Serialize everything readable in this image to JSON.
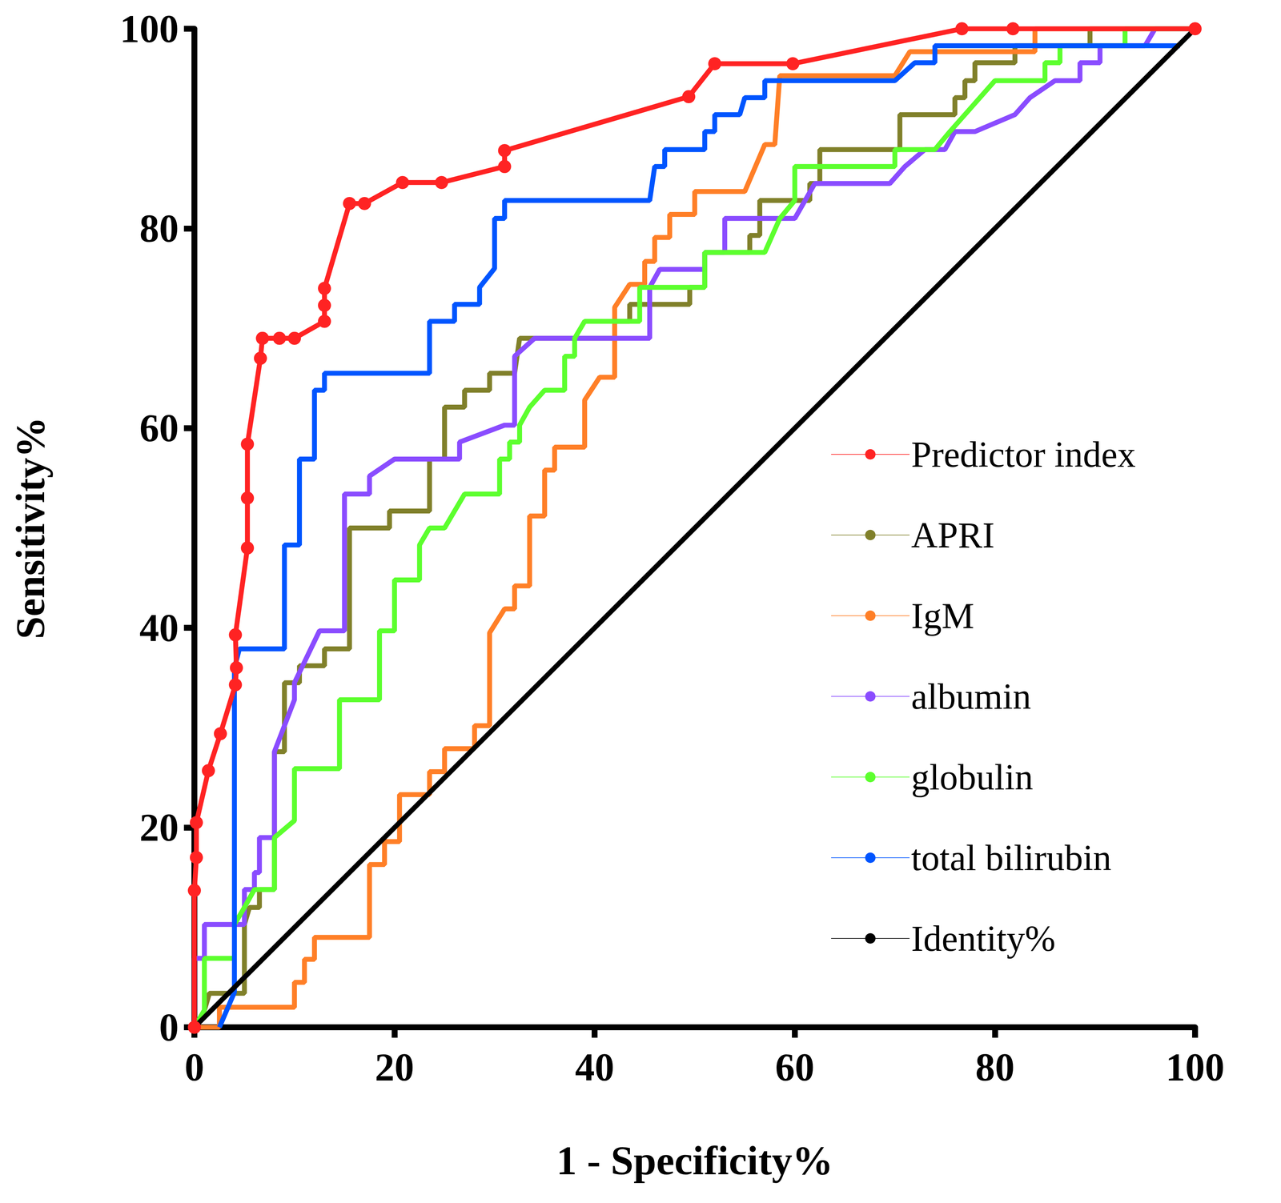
{
  "chart_data": {
    "type": "line",
    "x_label": "1 - Specificity%",
    "y_label": "Sensitivity%",
    "xlim": [
      0,
      100
    ],
    "ylim": [
      0,
      100
    ],
    "xticks": [
      0,
      20,
      40,
      60,
      80,
      100
    ],
    "yticks": [
      0,
      20,
      40,
      60,
      80,
      100
    ],
    "grid": false,
    "legend": "lower right",
    "series": [
      {
        "name": "Predictor index",
        "color": "#ff2323",
        "marker": "circle",
        "x": [
          0,
          0,
          0.2,
          0.2,
          1.4,
          2.6,
          4.1,
          4.2,
          4.1,
          5.3,
          5.3,
          5.3,
          6.6,
          6.8,
          8.5,
          10,
          13,
          13,
          13,
          15.5,
          17,
          20.8,
          24.7,
          31,
          31,
          49.4,
          52,
          59.8,
          76.7,
          81.8,
          100
        ],
        "values": [
          0,
          13.7,
          17,
          20.5,
          25.7,
          29.4,
          34.3,
          36,
          39.3,
          48,
          53,
          58.4,
          67,
          69,
          69,
          69,
          70.7,
          72.3,
          74,
          82.5,
          82.5,
          84.6,
          84.6,
          86.2,
          87.8,
          93.2,
          96.5,
          96.5,
          100,
          100,
          100
        ]
      },
      {
        "name": "APRI",
        "color": "#80802a",
        "marker": "none",
        "x": [
          0,
          1,
          1.5,
          5,
          5,
          5.5,
          6.5,
          6.5,
          8,
          8,
          9,
          9,
          10.5,
          10.5,
          13,
          13,
          15.5,
          15.5,
          19.5,
          19.5,
          23.5,
          23.5,
          25,
          25,
          27,
          27,
          29.5,
          29.5,
          32,
          32.5,
          42,
          42,
          43.5,
          43.5,
          49.5,
          49.5,
          51,
          51,
          55.5,
          55.5,
          56.5,
          56.5,
          61.5,
          61.5,
          62.5,
          62.5,
          70.5,
          70.5,
          76,
          76,
          77,
          77,
          78,
          78,
          82,
          82,
          89.5,
          89.5,
          100
        ],
        "values": [
          0,
          1.7,
          3.4,
          3.4,
          10.3,
          12,
          12,
          13.8,
          13.8,
          27.6,
          27.6,
          34.5,
          34.5,
          36.2,
          36.2,
          37.9,
          37.9,
          50,
          50,
          51.7,
          51.7,
          56.9,
          56.9,
          62.1,
          62.1,
          63.8,
          63.8,
          65.5,
          65.5,
          69,
          69,
          70.7,
          70.7,
          72.4,
          72.4,
          74.1,
          74.1,
          77.6,
          77.6,
          79.3,
          79.3,
          82.8,
          82.8,
          84.5,
          84.5,
          87.9,
          87.9,
          91.4,
          91.4,
          93.1,
          93.1,
          94.8,
          94.8,
          96.6,
          96.6,
          98.3,
          98.3,
          100,
          100
        ]
      },
      {
        "name": "IgM",
        "color": "#ff7f27",
        "marker": "none",
        "x": [
          0,
          2.5,
          2.5,
          10,
          10,
          11,
          11,
          12,
          12,
          17.5,
          17.5,
          19,
          19,
          20.5,
          20.5,
          23.5,
          23.5,
          25,
          25,
          28,
          28,
          29.5,
          29.5,
          31,
          32,
          32,
          33.5,
          33.5,
          35,
          35,
          36,
          36,
          39,
          39,
          40.5,
          42,
          42,
          43.5,
          45,
          45,
          46,
          46,
          47.5,
          47.5,
          50,
          50,
          55,
          57,
          58,
          58.5,
          70,
          71.5,
          84,
          84,
          100
        ],
        "values": [
          0,
          0,
          2,
          2,
          4.5,
          4.5,
          6.8,
          6.8,
          9,
          9,
          16.3,
          16.3,
          18.6,
          18.6,
          23.3,
          23.3,
          25.6,
          25.6,
          27.9,
          27.9,
          30.2,
          30.2,
          39.5,
          41.9,
          41.9,
          44.2,
          44.2,
          51.2,
          51.2,
          55.8,
          55.8,
          58.1,
          58.1,
          62.8,
          65.1,
          65.1,
          72.1,
          74.4,
          74.4,
          76.7,
          76.7,
          79.1,
          79.1,
          81.4,
          81.4,
          83.7,
          83.7,
          88.4,
          88.4,
          95.3,
          95.3,
          97.7,
          97.7,
          100,
          100
        ]
      },
      {
        "name": "albumin",
        "color": "#8a4cff",
        "marker": "none",
        "x": [
          0,
          0,
          1,
          1,
          5,
          5,
          6,
          6,
          6.5,
          6.5,
          8,
          8,
          10,
          10,
          12.5,
          15,
          15,
          17.5,
          17.5,
          20,
          26.5,
          26.5,
          31,
          32,
          32,
          34,
          45.5,
          45.5,
          46.5,
          51,
          51,
          53,
          53,
          60,
          62,
          69.5,
          71,
          73,
          75,
          76,
          78,
          82,
          83.5,
          86,
          88.5,
          88.5,
          90.5,
          90.5,
          95,
          96,
          100
        ],
        "values": [
          0,
          6.9,
          6.9,
          10.3,
          10.3,
          13.8,
          13.8,
          15.5,
          15.5,
          19,
          19,
          27.6,
          32.8,
          34.5,
          39.7,
          39.7,
          53.4,
          53.4,
          55.2,
          56.9,
          56.9,
          58.6,
          60.3,
          60.3,
          67.2,
          69,
          69,
          74.1,
          75.9,
          75.9,
          77.6,
          77.6,
          81,
          81,
          84.5,
          84.5,
          86.2,
          87.9,
          87.9,
          89.7,
          89.7,
          91.4,
          93.1,
          94.8,
          94.8,
          96.6,
          96.6,
          98.3,
          98.3,
          100,
          100
        ]
      },
      {
        "name": "globulin",
        "color": "#5cff2e",
        "marker": "none",
        "x": [
          0,
          1,
          1,
          4,
          4,
          5,
          6,
          8,
          8,
          10,
          10,
          14.5,
          14.5,
          18.5,
          18.5,
          20,
          20,
          22.5,
          22.5,
          23.5,
          25,
          26,
          27,
          30.5,
          30.5,
          31.5,
          31.5,
          32.5,
          32.5,
          33.5,
          35,
          37,
          37,
          38,
          38,
          39,
          44.5,
          44.5,
          51,
          51,
          57,
          58.5,
          60,
          60,
          70,
          70,
          74,
          75.5,
          77,
          80,
          85,
          85,
          86.5,
          86.5,
          93,
          93,
          100
        ],
        "values": [
          0,
          1.7,
          6.9,
          6.9,
          10.3,
          12,
          13.8,
          13.8,
          19,
          20.7,
          25.9,
          25.9,
          32.8,
          32.8,
          39.7,
          39.7,
          44.8,
          44.8,
          48.3,
          50,
          50,
          51.7,
          53.4,
          53.4,
          56.9,
          56.9,
          58.6,
          58.6,
          60.3,
          62.1,
          63.8,
          63.8,
          67.2,
          67.2,
          69,
          70.7,
          70.7,
          74.1,
          74.1,
          77.6,
          77.6,
          81,
          82.8,
          86.2,
          86.2,
          87.9,
          87.9,
          89.7,
          91.4,
          94.8,
          94.8,
          96.6,
          96.6,
          98.3,
          98.3,
          100,
          100
        ]
      },
      {
        "name": "total bilirubin",
        "color": "#0055ff",
        "marker": "none",
        "x": [
          2.5,
          4,
          4,
          4.5,
          9,
          9,
          10.5,
          10.5,
          12,
          12,
          13,
          13,
          23.5,
          23.5,
          26,
          26,
          28.5,
          28.5,
          30,
          30,
          31,
          31,
          45.5,
          46,
          47,
          47,
          51,
          51,
          52,
          52,
          54.5,
          55,
          57,
          57,
          70,
          72,
          74,
          74,
          98.5
        ],
        "values": [
          0,
          3.5,
          36,
          37.9,
          37.9,
          48.3,
          48.3,
          56.9,
          56.9,
          63.8,
          63.8,
          65.5,
          65.5,
          70.7,
          70.7,
          72.4,
          72.4,
          74.1,
          76,
          81,
          81,
          82.8,
          82.8,
          86.2,
          86.2,
          87.9,
          87.9,
          89.7,
          89.7,
          91.4,
          91.4,
          93.1,
          93.1,
          94.8,
          94.8,
          96.6,
          96.6,
          98.3,
          98.3
        ]
      },
      {
        "name": "Identity%",
        "color": "#000000",
        "marker": "none",
        "x": [
          0,
          100
        ],
        "values": [
          0,
          100
        ]
      }
    ]
  }
}
